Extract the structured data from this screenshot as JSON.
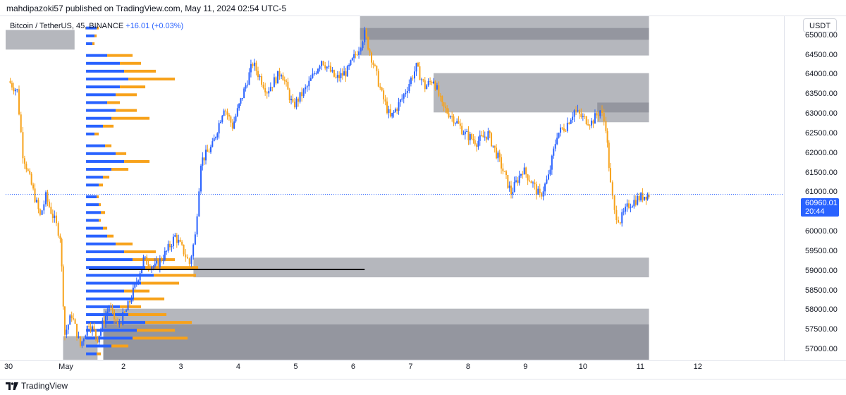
{
  "header": {
    "publish_line": "mahdipazoki57 published on TradingView.com, May 11, 2024 02:54 UTC-5"
  },
  "legend": {
    "symbol": "Bitcoin / TetherUS, 45, BINANCE",
    "change": "+16.01 (+0.03%)"
  },
  "currency_button": "USDT",
  "last_price": {
    "value": "60960.01",
    "countdown": "20:44"
  },
  "footer": {
    "brand": "TradingView"
  },
  "colors": {
    "up": "#2962ff",
    "down": "#f7a21b",
    "zone": "#787b86",
    "accent": "#2962ff"
  },
  "chart_data": {
    "type": "candlestick",
    "title": "",
    "xlabel": "",
    "ylabel": "",
    "ylim": [
      56750,
      65500
    ],
    "grid": false,
    "y_ticks": [
      57000,
      57500,
      58000,
      58500,
      59000,
      59500,
      60000,
      60500,
      61000,
      61500,
      62000,
      62500,
      63000,
      63500,
      64000,
      64500,
      65000
    ],
    "y_tick_labels": [
      "57000.00",
      "57500.00",
      "58000.00",
      "58500.00",
      "59000.00",
      "59500.00",
      "60000.00",
      "60500.00",
      "61000.00",
      "61500.00",
      "62000.00",
      "62500.00",
      "63000.00",
      "63500.00",
      "64000.00",
      "64500.00",
      "65000.00"
    ],
    "x_range_days": [
      -1.05,
      12.5
    ],
    "x_ticks": [
      {
        "label": "30",
        "day": -1
      },
      {
        "label": "May",
        "day": 0
      },
      {
        "label": "2",
        "day": 1
      },
      {
        "label": "3",
        "day": 2
      },
      {
        "label": "4",
        "day": 3
      },
      {
        "label": "5",
        "day": 4
      },
      {
        "label": "6",
        "day": 5
      },
      {
        "label": "7",
        "day": 6
      },
      {
        "label": "8",
        "day": 7
      },
      {
        "label": "9",
        "day": 8
      },
      {
        "label": "10",
        "day": 9
      },
      {
        "label": "11",
        "day": 10
      },
      {
        "label": "12",
        "day": 11
      }
    ],
    "price_path": [
      {
        "day": -1.0,
        "price": 63850
      },
      {
        "day": -0.85,
        "price": 63600
      },
      {
        "day": -0.75,
        "price": 62000
      },
      {
        "day": -0.6,
        "price": 61200
      },
      {
        "day": -0.45,
        "price": 60400
      },
      {
        "day": -0.35,
        "price": 60900
      },
      {
        "day": -0.2,
        "price": 60300
      },
      {
        "day": -0.1,
        "price": 59900
      },
      {
        "day": -0.02,
        "price": 57400
      },
      {
        "day": 0.1,
        "price": 57900
      },
      {
        "day": 0.25,
        "price": 57100
      },
      {
        "day": 0.4,
        "price": 57700
      },
      {
        "day": 0.55,
        "price": 57300
      },
      {
        "day": 0.75,
        "price": 58100
      },
      {
        "day": 0.9,
        "price": 57600
      },
      {
        "day": 1.05,
        "price": 58000
      },
      {
        "day": 1.2,
        "price": 58600
      },
      {
        "day": 1.35,
        "price": 59300
      },
      {
        "day": 1.55,
        "price": 59100
      },
      {
        "day": 1.75,
        "price": 59500
      },
      {
        "day": 1.9,
        "price": 59900
      },
      {
        "day": 2.05,
        "price": 59500
      },
      {
        "day": 2.15,
        "price": 59200
      },
      {
        "day": 2.25,
        "price": 59900
      },
      {
        "day": 2.35,
        "price": 61800
      },
      {
        "day": 2.55,
        "price": 62200
      },
      {
        "day": 2.75,
        "price": 63200
      },
      {
        "day": 2.9,
        "price": 62700
      },
      {
        "day": 3.1,
        "price": 63600
      },
      {
        "day": 3.25,
        "price": 64300
      },
      {
        "day": 3.5,
        "price": 63600
      },
      {
        "day": 3.75,
        "price": 64100
      },
      {
        "day": 3.95,
        "price": 63200
      },
      {
        "day": 4.2,
        "price": 63700
      },
      {
        "day": 4.45,
        "price": 64400
      },
      {
        "day": 4.7,
        "price": 63900
      },
      {
        "day": 4.9,
        "price": 64100
      },
      {
        "day": 5.1,
        "price": 64700
      },
      {
        "day": 5.2,
        "price": 65050
      },
      {
        "day": 5.35,
        "price": 64300
      },
      {
        "day": 5.5,
        "price": 63500
      },
      {
        "day": 5.65,
        "price": 62900
      },
      {
        "day": 5.85,
        "price": 63400
      },
      {
        "day": 6.1,
        "price": 64200
      },
      {
        "day": 6.25,
        "price": 63700
      },
      {
        "day": 6.4,
        "price": 63900
      },
      {
        "day": 6.55,
        "price": 63200
      },
      {
        "day": 6.75,
        "price": 62900
      },
      {
        "day": 6.95,
        "price": 62500
      },
      {
        "day": 7.15,
        "price": 62300
      },
      {
        "day": 7.35,
        "price": 62500
      },
      {
        "day": 7.55,
        "price": 61800
      },
      {
        "day": 7.75,
        "price": 61000
      },
      {
        "day": 7.95,
        "price": 61600
      },
      {
        "day": 8.1,
        "price": 61300
      },
      {
        "day": 8.25,
        "price": 60900
      },
      {
        "day": 8.4,
        "price": 61400
      },
      {
        "day": 8.55,
        "price": 62500
      },
      {
        "day": 8.7,
        "price": 62700
      },
      {
        "day": 8.85,
        "price": 63100
      },
      {
        "day": 9.0,
        "price": 62900
      },
      {
        "day": 9.15,
        "price": 62800
      },
      {
        "day": 9.3,
        "price": 63100
      },
      {
        "day": 9.4,
        "price": 62700
      },
      {
        "day": 9.48,
        "price": 61200
      },
      {
        "day": 9.55,
        "price": 60500
      },
      {
        "day": 9.65,
        "price": 60300
      },
      {
        "day": 9.8,
        "price": 60700
      },
      {
        "day": 9.95,
        "price": 60850
      },
      {
        "day": 10.1,
        "price": 60950
      },
      {
        "day": 10.15,
        "price": 60960
      }
    ],
    "zones": [
      {
        "top": 65500,
        "bottom": 64500,
        "from_day": 5.12,
        "to_day": 10.15
      },
      {
        "top": 65200,
        "bottom": 64900,
        "from_day": 5.12,
        "to_day": 10.15
      },
      {
        "top": 65150,
        "bottom": 64650,
        "from_day": -1.05,
        "to_day": 0.15
      },
      {
        "top": 64050,
        "bottom": 63050,
        "from_day": 6.4,
        "to_day": 10.15
      },
      {
        "top": 63300,
        "bottom": 62800,
        "from_day": 9.25,
        "to_day": 10.15
      },
      {
        "top": 59350,
        "bottom": 58850,
        "from_day": 2.22,
        "to_day": 10.15
      },
      {
        "top": 58050,
        "bottom": 56750,
        "from_day": 0.65,
        "to_day": 10.15
      },
      {
        "top": 57650,
        "bottom": 56750,
        "from_day": 0.65,
        "to_day": 10.15
      },
      {
        "top": 57350,
        "bottom": 56750,
        "from_day": -0.05,
        "to_day": 0.55
      }
    ],
    "level_line": {
      "price": 59050,
      "from_day": 0.4,
      "to_day": 5.2
    },
    "volume_profile": {
      "anchor_day": 0.35,
      "rows": [
        {
          "price": 65200,
          "buy": 0.05,
          "sell": 0.01
        },
        {
          "price": 65000,
          "buy": 0.04,
          "sell": 0.01
        },
        {
          "price": 64800,
          "buy": 0.03,
          "sell": 0.01
        },
        {
          "price": 64500,
          "buy": 0.1,
          "sell": 0.12
        },
        {
          "price": 64300,
          "buy": 0.16,
          "sell": 0.1
        },
        {
          "price": 64100,
          "buy": 0.18,
          "sell": 0.15
        },
        {
          "price": 63900,
          "buy": 0.2,
          "sell": 0.22
        },
        {
          "price": 63700,
          "buy": 0.16,
          "sell": 0.12
        },
        {
          "price": 63500,
          "buy": 0.14,
          "sell": 0.1
        },
        {
          "price": 63300,
          "buy": 0.1,
          "sell": 0.06
        },
        {
          "price": 63100,
          "buy": 0.14,
          "sell": 0.1
        },
        {
          "price": 62900,
          "buy": 0.12,
          "sell": 0.18
        },
        {
          "price": 62700,
          "buy": 0.08,
          "sell": 0.05
        },
        {
          "price": 62500,
          "buy": 0.04,
          "sell": 0.02
        },
        {
          "price": 62200,
          "buy": 0.09,
          "sell": 0.03
        },
        {
          "price": 62000,
          "buy": 0.14,
          "sell": 0.05
        },
        {
          "price": 61800,
          "buy": 0.18,
          "sell": 0.12
        },
        {
          "price": 61600,
          "buy": 0.12,
          "sell": 0.08
        },
        {
          "price": 61400,
          "buy": 0.08,
          "sell": 0.03
        },
        {
          "price": 61200,
          "buy": 0.06,
          "sell": 0.02
        },
        {
          "price": 60900,
          "buy": 0.05,
          "sell": 0.01
        },
        {
          "price": 60700,
          "buy": 0.06,
          "sell": 0.01
        },
        {
          "price": 60500,
          "buy": 0.07,
          "sell": 0.02
        },
        {
          "price": 60300,
          "buy": 0.06,
          "sell": 0.01
        },
        {
          "price": 60100,
          "buy": 0.08,
          "sell": 0.02
        },
        {
          "price": 59900,
          "buy": 0.1,
          "sell": 0.03
        },
        {
          "price": 59700,
          "buy": 0.14,
          "sell": 0.08
        },
        {
          "price": 59500,
          "buy": 0.18,
          "sell": 0.15
        },
        {
          "price": 59300,
          "buy": 0.22,
          "sell": 0.2
        },
        {
          "price": 59100,
          "buy": 0.28,
          "sell": 0.25
        },
        {
          "price": 58900,
          "buy": 0.32,
          "sell": 0.2
        },
        {
          "price": 58700,
          "buy": 0.26,
          "sell": 0.18
        },
        {
          "price": 58500,
          "buy": 0.18,
          "sell": 0.12
        },
        {
          "price": 58300,
          "buy": 0.22,
          "sell": 0.15
        },
        {
          "price": 58100,
          "buy": 0.16,
          "sell": 0.1
        },
        {
          "price": 57900,
          "buy": 0.2,
          "sell": 0.18
        },
        {
          "price": 57700,
          "buy": 0.28,
          "sell": 0.22
        },
        {
          "price": 57500,
          "buy": 0.24,
          "sell": 0.18
        },
        {
          "price": 57300,
          "buy": 0.22,
          "sell": 0.26
        },
        {
          "price": 57100,
          "buy": 0.12,
          "sell": 0.08
        },
        {
          "price": 56900,
          "buy": 0.05,
          "sell": 0.02
        }
      ]
    }
  }
}
